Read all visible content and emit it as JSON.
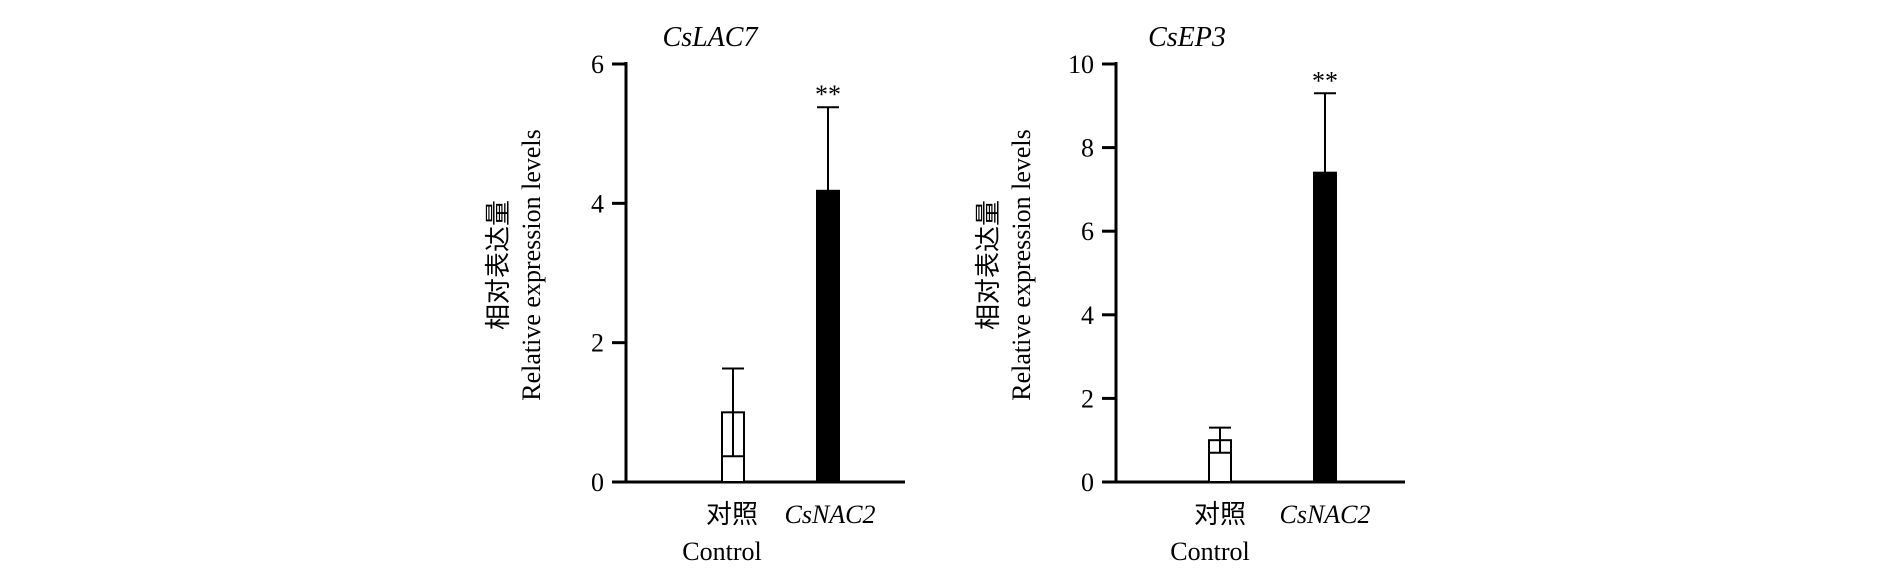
{
  "chart_data": [
    {
      "type": "bar",
      "title": "CsLAC7",
      "ylabel_cn": "相对表达量",
      "ylabel": "Relative expression levels",
      "ylim": [
        0,
        6
      ],
      "yticks": [
        0,
        2,
        4,
        6
      ],
      "categories": [
        "对照",
        "CsNAC2"
      ],
      "categories_en": [
        "Control",
        ""
      ],
      "values": [
        1.0,
        4.18
      ],
      "errors": [
        0.63,
        1.2
      ],
      "fills": [
        "#ffffff",
        "#000000"
      ],
      "significance": [
        "",
        "**"
      ]
    },
    {
      "type": "bar",
      "title": "CsEP3",
      "ylabel_cn": "相对表达量",
      "ylabel": "Relative expression levels",
      "ylim": [
        0,
        10
      ],
      "yticks": [
        0,
        2,
        4,
        6,
        8,
        10
      ],
      "categories": [
        "对照",
        "CsNAC2"
      ],
      "categories_en": [
        "Control",
        ""
      ],
      "values": [
        1.0,
        7.4
      ],
      "errors": [
        0.3,
        1.9
      ],
      "fills": [
        "#ffffff",
        "#000000"
      ],
      "significance": [
        "",
        "**"
      ]
    }
  ]
}
